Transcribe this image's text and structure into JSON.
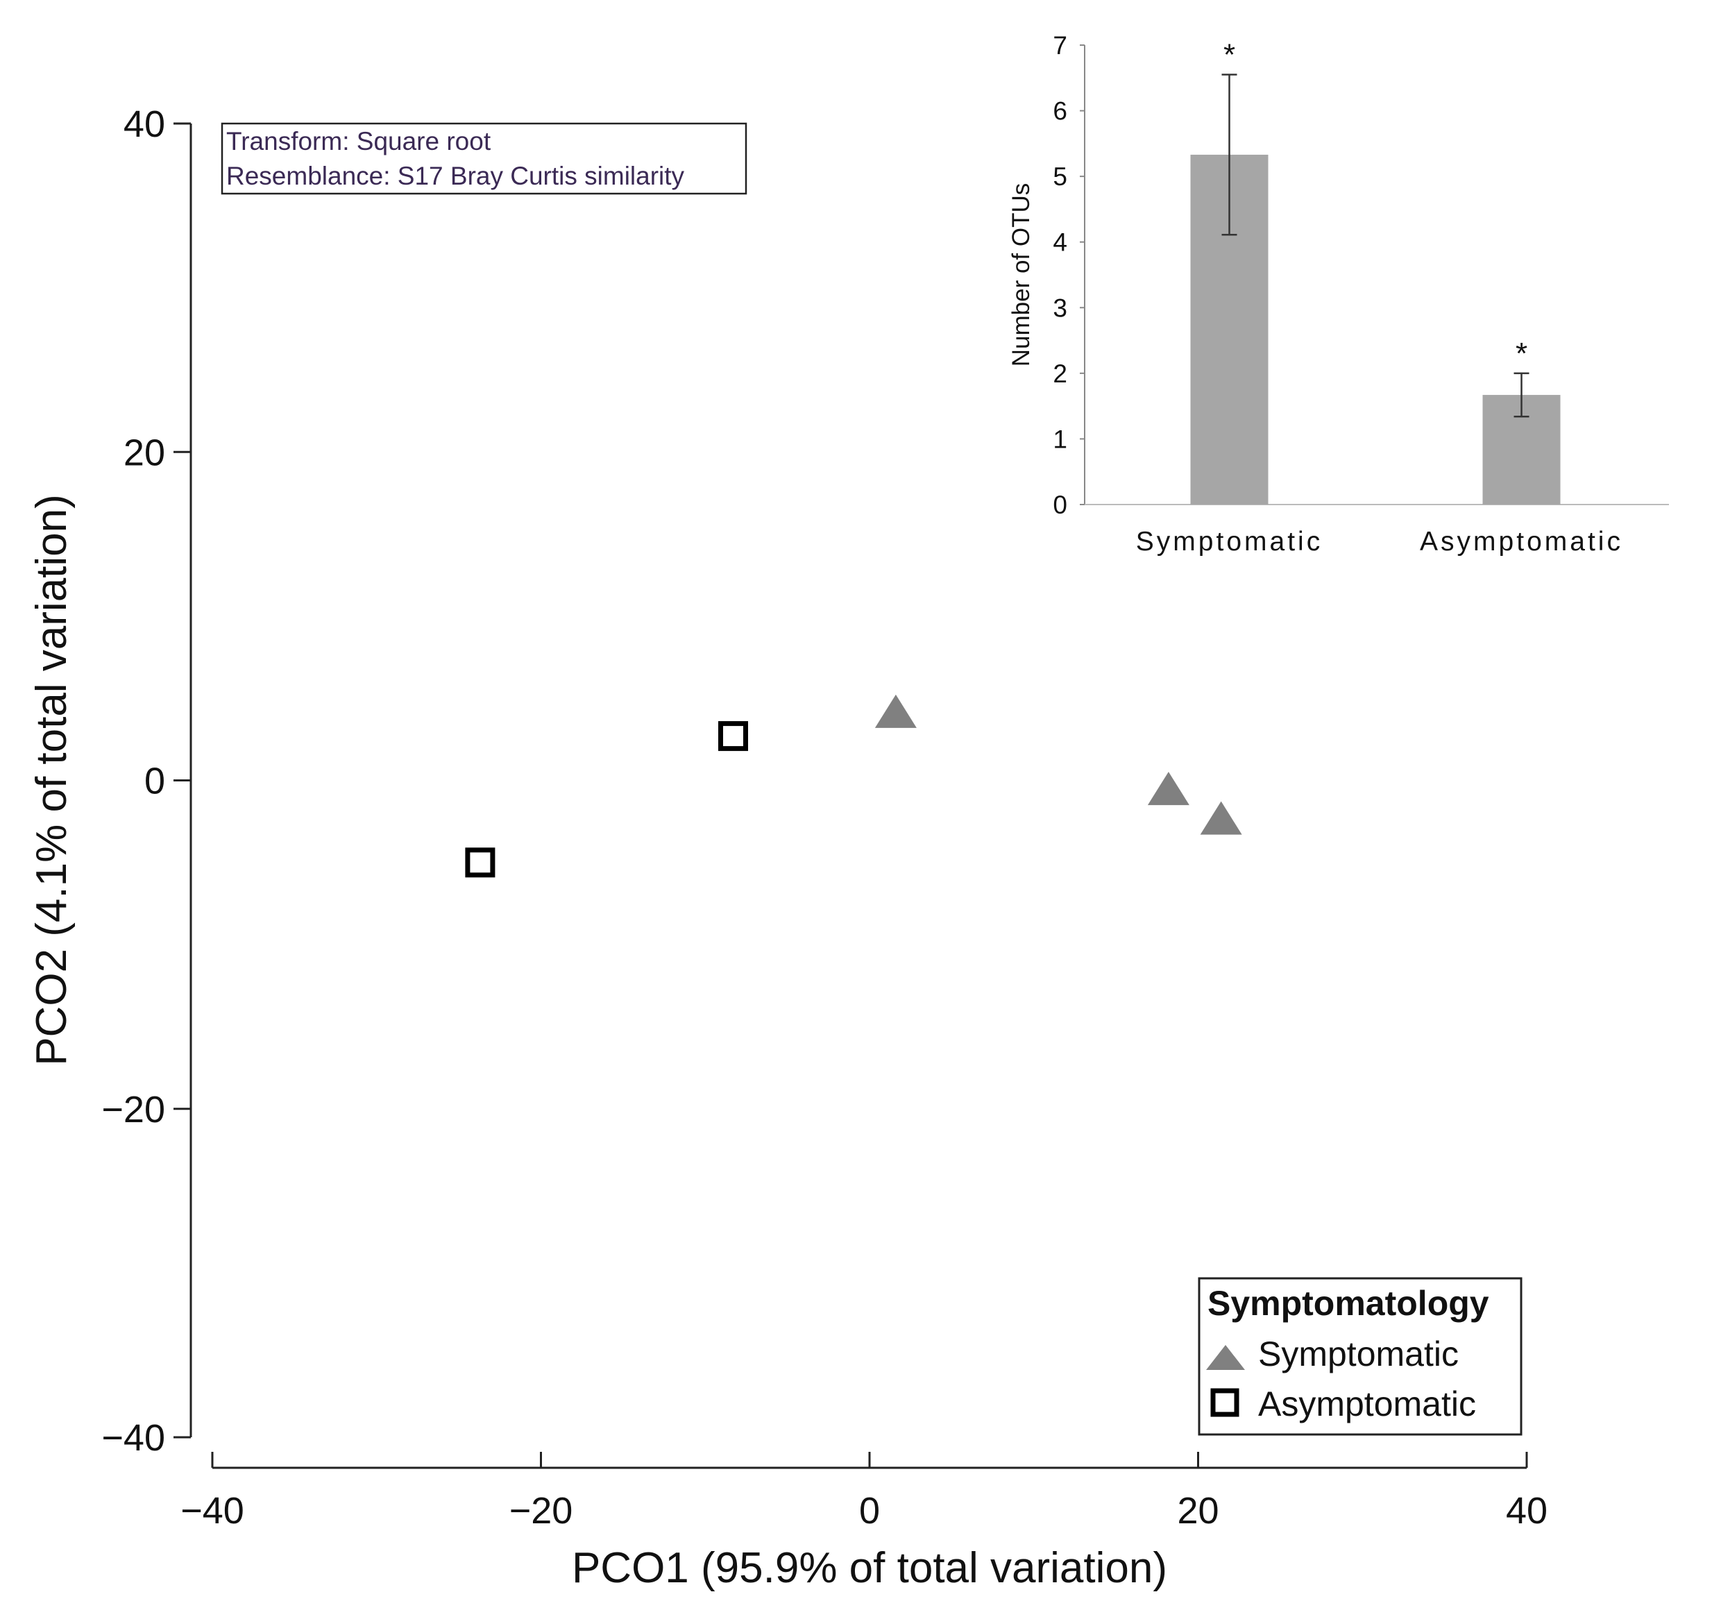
{
  "chart_data": [
    {
      "type": "scatter",
      "xlabel": "PCO1 (95.9% of total variation)",
      "ylabel": "PCO2 (4.1% of total variation)",
      "xlim": [
        -40,
        40
      ],
      "ylim": [
        -40,
        40
      ],
      "xticks": [
        -40,
        -20,
        0,
        20,
        40
      ],
      "yticks": [
        -40,
        -20,
        0,
        20,
        40
      ],
      "annotation": [
        "Transform: Square root",
        "Resemblance: S17 Bray Curtis similarity"
      ],
      "legend": {
        "title": "Symptomatology",
        "placement": "bottom-right"
      },
      "series": [
        {
          "name": "Symptomatic",
          "marker": "triangle",
          "color": "#808080",
          "points": [
            {
              "x": 1.6,
              "y": 4.0
            },
            {
              "x": 18.2,
              "y": -0.7
            },
            {
              "x": 21.4,
              "y": -2.5
            }
          ]
        },
        {
          "name": "Asymptomatic",
          "marker": "open-square",
          "color": "#000000",
          "points": [
            {
              "x": -23.7,
              "y": -5.0
            },
            {
              "x": -8.3,
              "y": 2.7
            }
          ]
        }
      ]
    },
    {
      "type": "bar",
      "categories": [
        "Symptomatic",
        "Asymptomatic"
      ],
      "values": [
        5.33,
        1.67
      ],
      "errors": [
        1.22,
        0.33
      ],
      "significance": [
        "*",
        "*"
      ],
      "ylabel": "Number of OTUs",
      "ylim": [
        0,
        7
      ],
      "yticks": [
        0,
        1,
        2,
        3,
        4,
        5,
        6,
        7
      ],
      "bar_color": "#a6a6a6",
      "placement": "top-right inset"
    }
  ]
}
